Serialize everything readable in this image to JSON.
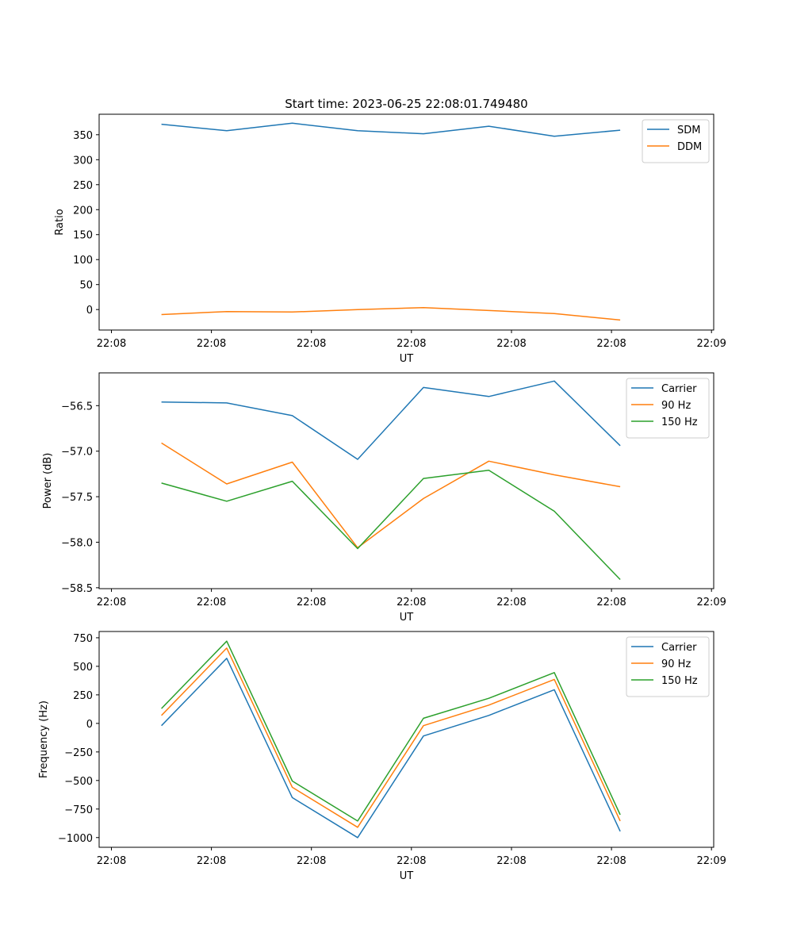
{
  "figure_title": "Start time: 2023-06-25 22:08:01.749480",
  "chart_data": [
    {
      "type": "line",
      "title": "Start time: 2023-06-25 22:08:01.749480",
      "xlabel": "UT",
      "ylabel": "Ratio",
      "x_tick_labels": [
        "22:08",
        "22:08",
        "22:08",
        "22:08",
        "22:08",
        "22:08",
        "22:09"
      ],
      "yticks": [
        0,
        50,
        100,
        150,
        200,
        250,
        300,
        350
      ],
      "ylim": [
        -41,
        391
      ],
      "legend_position": "top-right",
      "grid": false,
      "series": [
        {
          "name": "SDM",
          "color": "#1f77b4",
          "values": [
            371,
            358,
            373,
            358,
            352,
            367,
            347,
            359
          ]
        },
        {
          "name": "DDM",
          "color": "#ff7f0e",
          "values": [
            -10,
            -4,
            -5,
            0,
            4,
            -2,
            -8,
            -21
          ]
        }
      ]
    },
    {
      "type": "line",
      "xlabel": "UT",
      "ylabel": "Power (dB)",
      "x_tick_labels": [
        "22:08",
        "22:08",
        "22:08",
        "22:08",
        "22:08",
        "22:08",
        "22:09"
      ],
      "yticks": [
        -58.5,
        -58.0,
        -57.5,
        -57.0,
        -56.5
      ],
      "ytick_labels": [
        "−58.5",
        "−58.0",
        "−57.5",
        "−57.0",
        "−56.5"
      ],
      "ylim": [
        -58.51,
        -56.14
      ],
      "legend_position": "top-right",
      "grid": false,
      "series": [
        {
          "name": "Carrier",
          "color": "#1f77b4",
          "values": [
            -56.46,
            -56.47,
            -56.61,
            -57.09,
            -56.3,
            -56.4,
            -56.23,
            -56.94
          ]
        },
        {
          "name": "90 Hz",
          "color": "#ff7f0e",
          "values": [
            -56.91,
            -57.36,
            -57.12,
            -58.06,
            -57.52,
            -57.11,
            -57.26,
            -57.39
          ]
        },
        {
          "name": "150 Hz",
          "color": "#2ca02c",
          "values": [
            -57.35,
            -57.55,
            -57.33,
            -58.07,
            -57.3,
            -57.21,
            -57.66,
            -58.41
          ]
        }
      ]
    },
    {
      "type": "line",
      "xlabel": "UT",
      "ylabel": "Frequency (Hz)",
      "x_tick_labels": [
        "22:08",
        "22:08",
        "22:08",
        "22:08",
        "22:08",
        "22:08",
        "22:09"
      ],
      "yticks": [
        -1000,
        -750,
        -500,
        -250,
        0,
        250,
        500,
        750
      ],
      "ytick_labels": [
        "−1000",
        "−750",
        "−500",
        "−250",
        "0",
        "250",
        "500",
        "750"
      ],
      "ylim": [
        -1085,
        805
      ],
      "legend_position": "top-right",
      "grid": false,
      "series": [
        {
          "name": "Carrier",
          "color": "#1f77b4",
          "values": [
            -20,
            570,
            -650,
            -1000,
            -110,
            70,
            295,
            -945
          ]
        },
        {
          "name": "90 Hz",
          "color": "#ff7f0e",
          "values": [
            70,
            660,
            -560,
            -910,
            -20,
            160,
            385,
            -855
          ]
        },
        {
          "name": "150 Hz",
          "color": "#2ca02c",
          "values": [
            130,
            720,
            -505,
            -855,
            45,
            220,
            445,
            -800
          ]
        }
      ]
    }
  ]
}
